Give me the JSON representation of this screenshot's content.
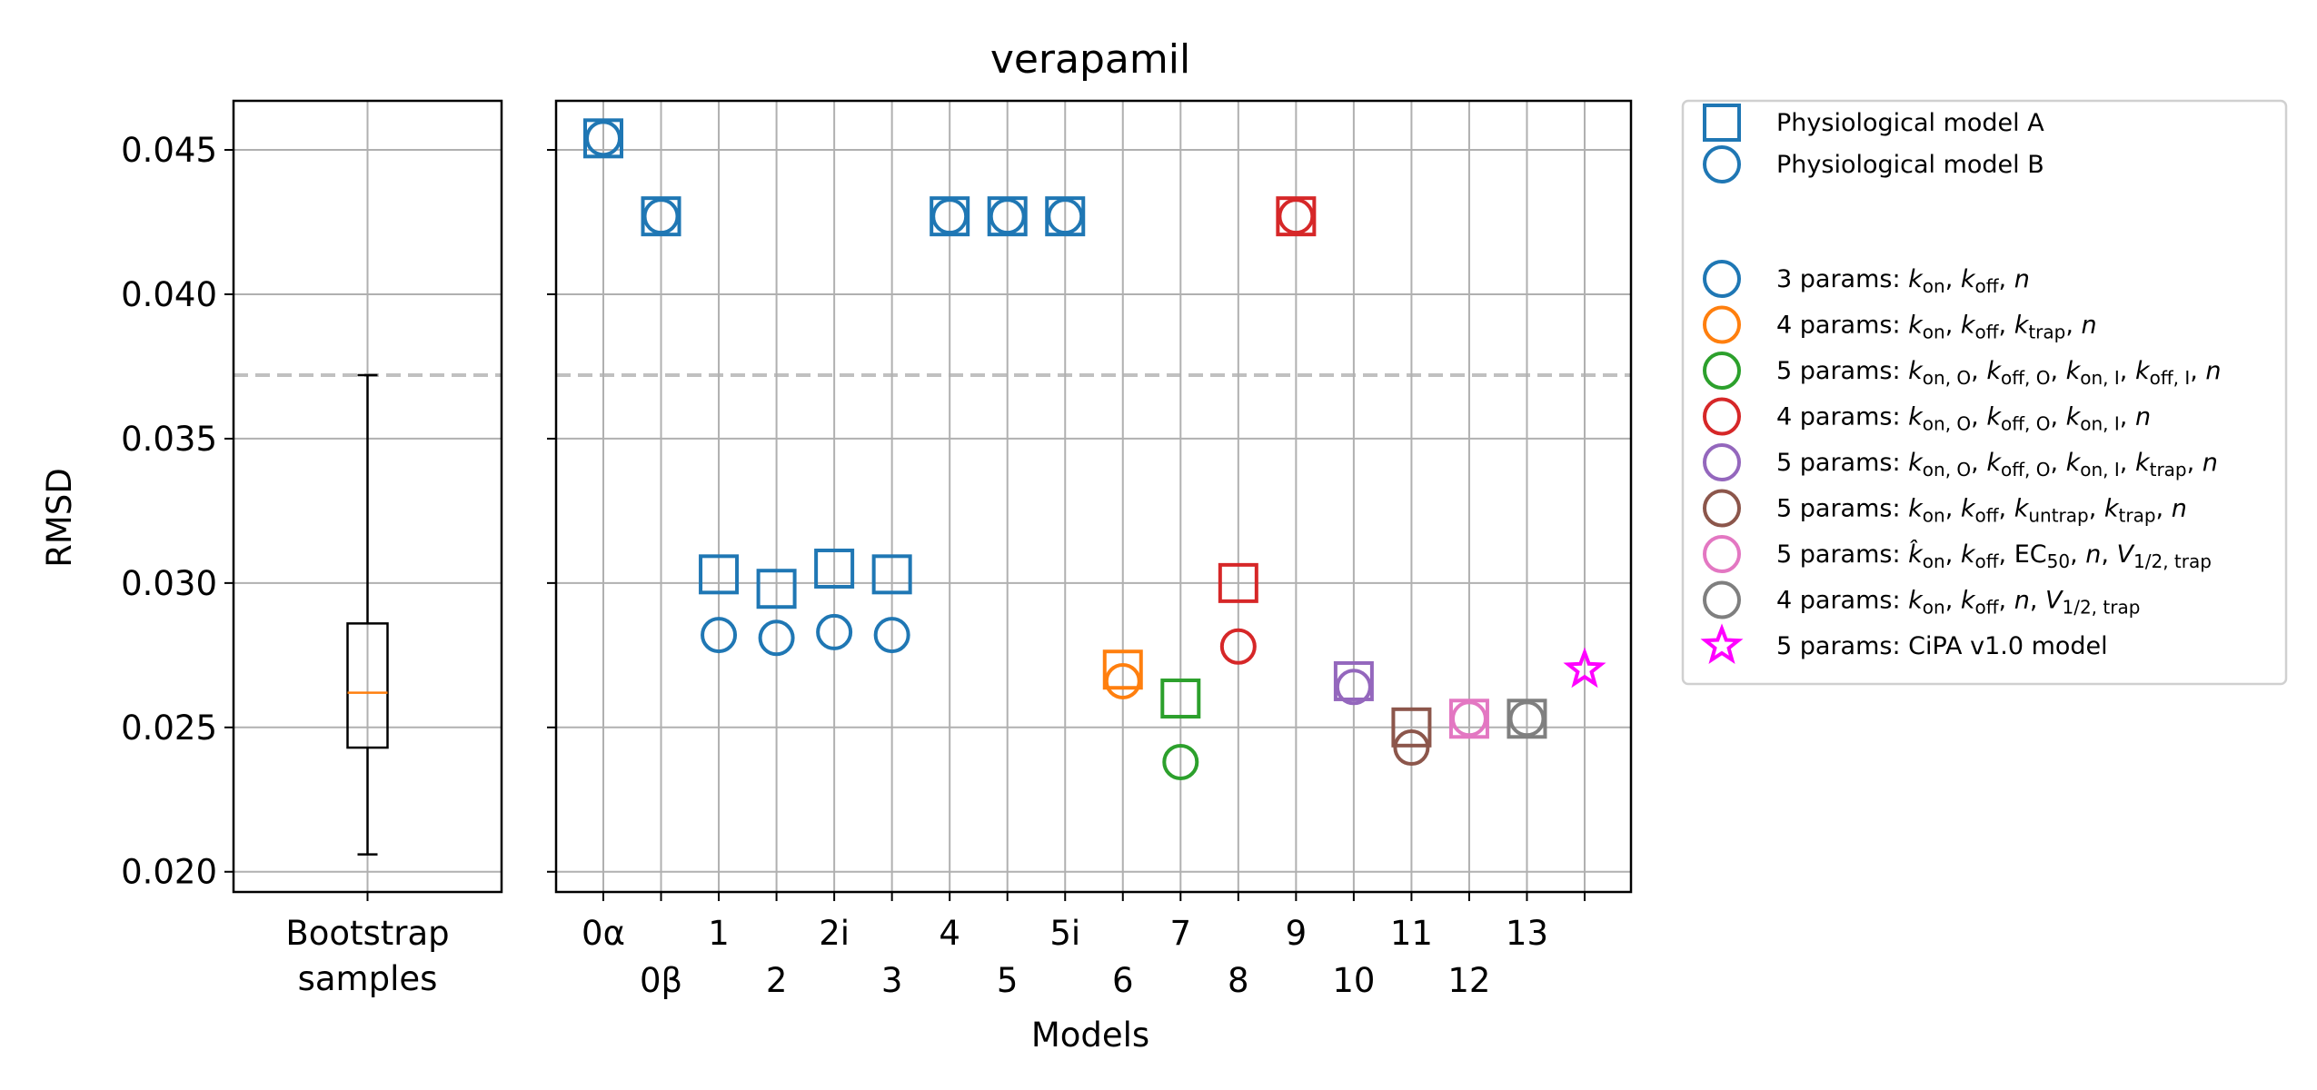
{
  "chart_data": {
    "type": "scatter",
    "title": "verapamil",
    "ylabel": "RMSD",
    "xlabel": "Models",
    "ylim": [
      0.0193,
      0.0467
    ],
    "yticks": [
      "0.020",
      "0.025",
      "0.030",
      "0.035",
      "0.040",
      "0.045"
    ],
    "ytick_values": [
      0.02,
      0.025,
      0.03,
      0.035,
      0.04,
      0.045
    ],
    "threshold": 0.0372,
    "grid": true,
    "bootstrap": {
      "label_line1": "Bootstrap",
      "label_line2": "samples",
      "whisker_low": 0.0206,
      "q1": 0.0243,
      "median": 0.0262,
      "q3": 0.0286,
      "whisker_high": 0.0372
    },
    "models": [
      "0α",
      "0β",
      "1",
      "2",
      "2i",
      "3",
      "4",
      "5",
      "5i",
      "6",
      "7",
      "8",
      "9",
      "10",
      "11",
      "12",
      "13",
      "CiPA"
    ],
    "tick_labels": [
      {
        "text": "0α",
        "row": 1
      },
      {
        "text": "0β",
        "row": 2
      },
      {
        "text": "1",
        "row": 1
      },
      {
        "text": "2",
        "row": 2
      },
      {
        "text": "2i",
        "row": 1
      },
      {
        "text": "3",
        "row": 2
      },
      {
        "text": "4",
        "row": 1
      },
      {
        "text": "5",
        "row": 2
      },
      {
        "text": "5i",
        "row": 1
      },
      {
        "text": "6",
        "row": 2
      },
      {
        "text": "7",
        "row": 1
      },
      {
        "text": "8",
        "row": 2
      },
      {
        "text": "9",
        "row": 1
      },
      {
        "text": "10",
        "row": 2
      },
      {
        "text": "11",
        "row": 1
      },
      {
        "text": "12",
        "row": 2
      },
      {
        "text": "13",
        "row": 1
      },
      {
        "text": "",
        "row": 2
      }
    ],
    "colors": {
      "3params": "#1f77b4",
      "4params_trap": "#ff7f0e",
      "5params_OI": "#2ca02c",
      "4params_OI": "#d62728",
      "5params_OItrap": "#9467bd",
      "5params_untrap": "#8c564b",
      "5params_hat": "#e377c2",
      "4params_V": "#7f7f7f",
      "cipa": "#ff00ff"
    },
    "series": [
      {
        "name": "Physiological model A",
        "marker": "square",
        "points": [
          {
            "model": "0α",
            "y": 0.0454,
            "color": "3params"
          },
          {
            "model": "0β",
            "y": 0.0427,
            "color": "3params"
          },
          {
            "model": "1",
            "y": 0.0303,
            "color": "3params"
          },
          {
            "model": "2",
            "y": 0.0298,
            "color": "3params"
          },
          {
            "model": "2i",
            "y": 0.0305,
            "color": "3params"
          },
          {
            "model": "3",
            "y": 0.0303,
            "color": "3params"
          },
          {
            "model": "4",
            "y": 0.0427,
            "color": "3params"
          },
          {
            "model": "5",
            "y": 0.0427,
            "color": "3params"
          },
          {
            "model": "5i",
            "y": 0.0427,
            "color": "3params"
          },
          {
            "model": "6",
            "y": 0.027,
            "color": "4params_trap"
          },
          {
            "model": "7",
            "y": 0.026,
            "color": "5params_OI"
          },
          {
            "model": "8",
            "y": 0.03,
            "color": "4params_OI"
          },
          {
            "model": "9",
            "y": 0.0427,
            "color": "4params_OI"
          },
          {
            "model": "10",
            "y": 0.0266,
            "color": "5params_OItrap"
          },
          {
            "model": "11",
            "y": 0.025,
            "color": "5params_untrap"
          },
          {
            "model": "12",
            "y": 0.0253,
            "color": "5params_hat"
          },
          {
            "model": "13",
            "y": 0.0253,
            "color": "4params_V"
          }
        ]
      },
      {
        "name": "Physiological model B",
        "marker": "circle",
        "points": [
          {
            "model": "0α",
            "y": 0.0454,
            "color": "3params"
          },
          {
            "model": "0β",
            "y": 0.0427,
            "color": "3params"
          },
          {
            "model": "1",
            "y": 0.0282,
            "color": "3params"
          },
          {
            "model": "2",
            "y": 0.0281,
            "color": "3params"
          },
          {
            "model": "2i",
            "y": 0.0283,
            "color": "3params"
          },
          {
            "model": "3",
            "y": 0.0282,
            "color": "3params"
          },
          {
            "model": "4",
            "y": 0.0427,
            "color": "3params"
          },
          {
            "model": "5",
            "y": 0.0427,
            "color": "3params"
          },
          {
            "model": "5i",
            "y": 0.0427,
            "color": "3params"
          },
          {
            "model": "6",
            "y": 0.0266,
            "color": "4params_trap"
          },
          {
            "model": "7",
            "y": 0.0238,
            "color": "5params_OI"
          },
          {
            "model": "8",
            "y": 0.0278,
            "color": "4params_OI"
          },
          {
            "model": "9",
            "y": 0.0427,
            "color": "4params_OI"
          },
          {
            "model": "10",
            "y": 0.0264,
            "color": "5params_OItrap"
          },
          {
            "model": "11",
            "y": 0.0243,
            "color": "5params_untrap"
          },
          {
            "model": "12",
            "y": 0.0253,
            "color": "5params_hat"
          },
          {
            "model": "13",
            "y": 0.0253,
            "color": "4params_V"
          }
        ]
      },
      {
        "name": "5 params: CiPA v1.0 model",
        "marker": "star",
        "points": [
          {
            "model": "CiPA",
            "y": 0.027,
            "color": "cipa"
          }
        ]
      }
    ],
    "legend": {
      "placement": "outside-right-top",
      "marker_entries": [
        {
          "label": "Physiological model A",
          "marker": "square",
          "color": "3params"
        },
        {
          "label": "Physiological model B",
          "marker": "circle",
          "color": "3params"
        }
      ],
      "param_entries": [
        {
          "marker": "circle",
          "color": "3params",
          "label_html": "3 params: <tspan font-style='italic'>k</tspan><tspan font-size='20' dy='6'>on</tspan><tspan dy='-6'>, </tspan><tspan font-style='italic'>k</tspan><tspan font-size='20' dy='6'>off</tspan><tspan dy='-6'>, </tspan><tspan font-style='italic'>n</tspan>"
        },
        {
          "marker": "circle",
          "color": "4params_trap",
          "label_html": "4 params: <tspan font-style='italic'>k</tspan><tspan font-size='20' dy='6'>on</tspan><tspan dy='-6'>, </tspan><tspan font-style='italic'>k</tspan><tspan font-size='20' dy='6'>off</tspan><tspan dy='-6'>, </tspan><tspan font-style='italic'>k</tspan><tspan font-size='20' dy='6'>trap</tspan><tspan dy='-6'>, </tspan><tspan font-style='italic'>n</tspan>"
        },
        {
          "marker": "circle",
          "color": "5params_OI",
          "label_html": "5 params: <tspan font-style='italic'>k</tspan><tspan font-size='20' dy='6'>on, O</tspan><tspan dy='-6'>, </tspan><tspan font-style='italic'>k</tspan><tspan font-size='20' dy='6'>off, O</tspan><tspan dy='-6'>, </tspan><tspan font-style='italic'>k</tspan><tspan font-size='20' dy='6'>on, I</tspan><tspan dy='-6'>, </tspan><tspan font-style='italic'>k</tspan><tspan font-size='20' dy='6'>off, I</tspan><tspan dy='-6'>, </tspan><tspan font-style='italic'>n</tspan>"
        },
        {
          "marker": "circle",
          "color": "4params_OI",
          "label_html": "4 params: <tspan font-style='italic'>k</tspan><tspan font-size='20' dy='6'>on, O</tspan><tspan dy='-6'>, </tspan><tspan font-style='italic'>k</tspan><tspan font-size='20' dy='6'>off, O</tspan><tspan dy='-6'>, </tspan><tspan font-style='italic'>k</tspan><tspan font-size='20' dy='6'>on, I</tspan><tspan dy='-6'>, </tspan><tspan font-style='italic'>n</tspan>"
        },
        {
          "marker": "circle",
          "color": "5params_OItrap",
          "label_html": "5 params: <tspan font-style='italic'>k</tspan><tspan font-size='20' dy='6'>on, O</tspan><tspan dy='-6'>, </tspan><tspan font-style='italic'>k</tspan><tspan font-size='20' dy='6'>off, O</tspan><tspan dy='-6'>, </tspan><tspan font-style='italic'>k</tspan><tspan font-size='20' dy='6'>on, I</tspan><tspan dy='-6'>, </tspan><tspan font-style='italic'>k</tspan><tspan font-size='20' dy='6'>trap</tspan><tspan dy='-6'>, </tspan><tspan font-style='italic'>n</tspan>"
        },
        {
          "marker": "circle",
          "color": "5params_untrap",
          "label_html": "5 params: <tspan font-style='italic'>k</tspan><tspan font-size='20' dy='6'>on</tspan><tspan dy='-6'>, </tspan><tspan font-style='italic'>k</tspan><tspan font-size='20' dy='6'>off</tspan><tspan dy='-6'>, </tspan><tspan font-style='italic'>k</tspan><tspan font-size='20' dy='6'>untrap</tspan><tspan dy='-6'>, </tspan><tspan font-style='italic'>k</tspan><tspan font-size='20' dy='6'>trap</tspan><tspan dy='-6'>, </tspan><tspan font-style='italic'>n</tspan>"
        },
        {
          "marker": "circle",
          "color": "5params_hat",
          "label_html": "5 params: <tspan font-style='italic'>k̂</tspan><tspan font-size='20' dy='6'>on</tspan><tspan dy='-6'>, </tspan><tspan font-style='italic'>k</tspan><tspan font-size='20' dy='6'>off</tspan><tspan dy='-6'>, EC</tspan><tspan font-size='20' dy='6'>50</tspan><tspan dy='-6'>, </tspan><tspan font-style='italic'>n</tspan><tspan>, </tspan><tspan font-style='italic'>V</tspan><tspan font-size='20' dy='6'>1/2, trap</tspan>"
        },
        {
          "marker": "circle",
          "color": "4params_V",
          "label_html": "4 params: <tspan font-style='italic'>k</tspan><tspan font-size='20' dy='6'>on</tspan><tspan dy='-6'>, </tspan><tspan font-style='italic'>k</tspan><tspan font-size='20' dy='6'>off</tspan><tspan dy='-6'>, </tspan><tspan font-style='italic'>n</tspan><tspan>, </tspan><tspan font-style='italic'>V</tspan><tspan font-size='20' dy='6'>1/2, trap</tspan>"
        },
        {
          "marker": "star",
          "color": "cipa",
          "label_html": "5 params: CiPA v1.0 model"
        }
      ]
    }
  }
}
